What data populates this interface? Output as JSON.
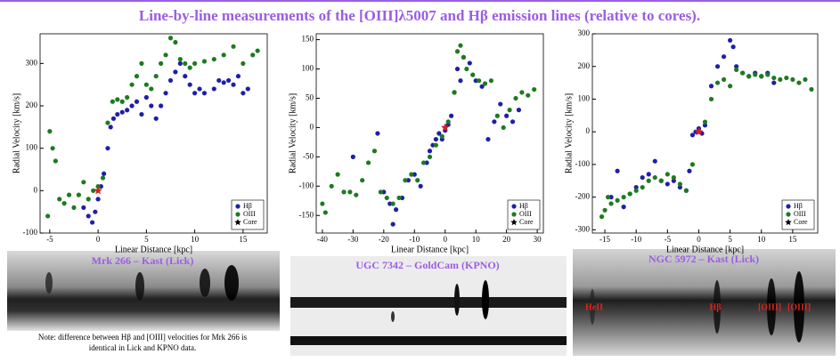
{
  "title": "Line-by-line measurements of the [OIII]λ5007 and Hβ emission lines (relative to cores).",
  "spectra": [
    "Mrk 266 – Kast (Lick)",
    "UGC 7342 – GoldCam (KPNO)",
    "NGC 5972 – Kast (Lick)"
  ],
  "line_labels": [
    "HeII",
    "Hβ",
    "[OIII]",
    "[OIII]"
  ],
  "note": [
    "Note: difference between Hβ and [OIII] velocities for Mrk 266 is",
    "identical in Lick and KPNO data."
  ],
  "chart_data": [
    {
      "type": "scatter",
      "xlabel": "Linear Distance [kpc]",
      "ylabel": "Radial Velocity [km/s]",
      "xlim": [
        -6,
        17.5
      ],
      "xticks": [
        -5,
        0,
        5,
        10,
        15
      ],
      "ylim": [
        -100,
        370
      ],
      "yticks": [
        -100,
        0,
        100,
        200,
        300
      ],
      "legend": "lower right",
      "series": [
        {
          "name": "Hβ",
          "color": "#1f1fa8",
          "marker": "circle",
          "x": [
            -1.5,
            -1,
            -0.6,
            -0.3,
            0,
            0.3,
            0.6,
            1,
            1.3,
            1.6,
            2,
            2.5,
            3,
            3.5,
            4,
            4.5,
            5,
            5.5,
            6,
            6.5,
            7,
            7.5,
            8,
            8.5,
            9,
            9.5,
            10,
            10.5,
            11,
            12,
            12.5,
            13,
            13.5,
            14,
            14.5,
            15,
            15.5
          ],
          "y": [
            -40,
            -60,
            -75,
            -50,
            -20,
            10,
            40,
            100,
            150,
            170,
            180,
            185,
            190,
            200,
            210,
            180,
            220,
            200,
            170,
            200,
            230,
            260,
            280,
            300,
            270,
            250,
            230,
            240,
            230,
            240,
            260,
            255,
            260,
            250,
            270,
            230,
            240
          ]
        },
        {
          "name": "OIII",
          "color": "#1e7a1e",
          "marker": "circle",
          "x": [
            -5.2,
            -5,
            -4.7,
            -4.4,
            -4,
            -3.5,
            -3,
            -2.5,
            -2,
            -1.5,
            -1,
            -0.5,
            0,
            0.5,
            1,
            1.5,
            2,
            2.5,
            3,
            3.5,
            4,
            4.5,
            5,
            5.5,
            6,
            6.5,
            7,
            7.5,
            8,
            8.5,
            9,
            9.5,
            10,
            11,
            12,
            13,
            14,
            15,
            16,
            16.5
          ],
          "y": [
            -60,
            140,
            100,
            70,
            -20,
            -30,
            -10,
            -40,
            -10,
            20,
            -20,
            0,
            10,
            30,
            160,
            210,
            215,
            210,
            220,
            250,
            270,
            300,
            250,
            240,
            270,
            300,
            320,
            360,
            350,
            310,
            300,
            290,
            300,
            305,
            310,
            320,
            340,
            300,
            320,
            330
          ]
        },
        {
          "name": "Core",
          "color": "#d62020",
          "marker": "star",
          "x": [
            0
          ],
          "y": [
            0
          ]
        }
      ]
    },
    {
      "type": "scatter",
      "xlabel": "Linear Distance [kpc]",
      "ylabel": "Radial Velocity [km/s]",
      "xlim": [
        -42,
        32
      ],
      "xticks": [
        -40,
        -30,
        -20,
        -10,
        0,
        10,
        20,
        30
      ],
      "ylim": [
        -180,
        160
      ],
      "yticks": [
        -150,
        -100,
        -50,
        0,
        50,
        100,
        150
      ],
      "legend": "lower right",
      "series": [
        {
          "name": "Hβ",
          "color": "#1f1fa8",
          "marker": "circle",
          "x": [
            -30,
            -22,
            -20,
            -18,
            -17,
            -16,
            -14,
            -12,
            -10,
            -8,
            -6,
            -5,
            -4,
            -3,
            -2,
            -1,
            0,
            1,
            2,
            3,
            4,
            5,
            6,
            8,
            10,
            12,
            14,
            16,
            18,
            20,
            22,
            24
          ],
          "y": [
            -50,
            -10,
            -110,
            -130,
            -165,
            -140,
            -120,
            -90,
            -80,
            -100,
            -60,
            -40,
            -30,
            -20,
            -10,
            -20,
            -5,
            5,
            20,
            60,
            100,
            80,
            120,
            110,
            80,
            70,
            -20,
            10,
            40,
            20,
            10,
            30
          ]
        },
        {
          "name": "OIII",
          "color": "#1e7a1e",
          "marker": "circle",
          "x": [
            -40,
            -39,
            -37,
            -35,
            -33,
            -31,
            -29,
            -27,
            -25,
            -23,
            -21,
            -19,
            -17,
            -15,
            -13,
            -11,
            -9,
            -7,
            -5,
            -3,
            -1,
            1,
            3,
            4,
            5,
            6,
            7,
            9,
            11,
            13,
            15,
            17,
            19,
            21,
            23,
            25,
            27,
            29
          ],
          "y": [
            -130,
            -145,
            -100,
            -80,
            -110,
            -110,
            -115,
            -90,
            -60,
            -40,
            -110,
            -120,
            -130,
            -120,
            -90,
            -80,
            -90,
            -60,
            -50,
            -30,
            -15,
            10,
            60,
            130,
            140,
            120,
            100,
            90,
            80,
            75,
            80,
            20,
            0,
            30,
            50,
            60,
            55,
            65
          ]
        },
        {
          "name": "Core",
          "color": "#d62020",
          "marker": "star",
          "x": [
            0
          ],
          "y": [
            0
          ]
        }
      ]
    },
    {
      "type": "scatter",
      "xlabel": "Linear Distance [kpc]",
      "ylabel": "Radial Velocity [km/s]",
      "xlim": [
        -17,
        19
      ],
      "xticks": [
        -15,
        -10,
        -5,
        0,
        5,
        10,
        15
      ],
      "ylim": [
        -310,
        300
      ],
      "yticks": [
        -300,
        -200,
        -100,
        0,
        100,
        200,
        300
      ],
      "legend": "lower right",
      "series": [
        {
          "name": "Hβ",
          "color": "#1f1fa8",
          "marker": "circle",
          "x": [
            -14,
            -13,
            -12,
            -11,
            -10,
            -9,
            -8,
            -7,
            -6,
            -5,
            -4,
            -3,
            -2,
            -1.5,
            -1,
            -0.5,
            0,
            0.5,
            1,
            2,
            3,
            4,
            5,
            5.5,
            6,
            7,
            8,
            9,
            10,
            11,
            12
          ],
          "y": [
            -200,
            -120,
            -230,
            -190,
            -170,
            -140,
            -130,
            -90,
            -150,
            -160,
            -150,
            -170,
            -180,
            -120,
            -10,
            0,
            10,
            -5,
            20,
            140,
            200,
            230,
            280,
            260,
            200,
            180,
            170,
            180,
            170,
            180,
            150
          ]
        },
        {
          "name": "OIII",
          "color": "#1e7a1e",
          "marker": "circle",
          "x": [
            -15.5,
            -15,
            -14.5,
            -14,
            -13,
            -12,
            -11,
            -10,
            -9,
            -8,
            -7,
            -6,
            -5,
            -4,
            -3,
            -2,
            -1,
            0,
            1,
            2,
            3,
            4,
            5,
            6,
            7,
            8,
            9,
            10,
            11,
            12,
            13,
            14,
            15,
            16,
            17,
            18
          ],
          "y": [
            -260,
            -240,
            -200,
            -220,
            -210,
            -200,
            -190,
            -180,
            -170,
            -150,
            -140,
            -150,
            -130,
            -140,
            -160,
            -180,
            -100,
            0,
            30,
            100,
            150,
            160,
            140,
            190,
            180,
            170,
            175,
            170,
            175,
            165,
            160,
            165,
            160,
            150,
            160,
            130
          ]
        },
        {
          "name": "Core",
          "color": "#d62020",
          "marker": "star",
          "x": [
            0
          ],
          "y": [
            0
          ]
        }
      ]
    }
  ]
}
